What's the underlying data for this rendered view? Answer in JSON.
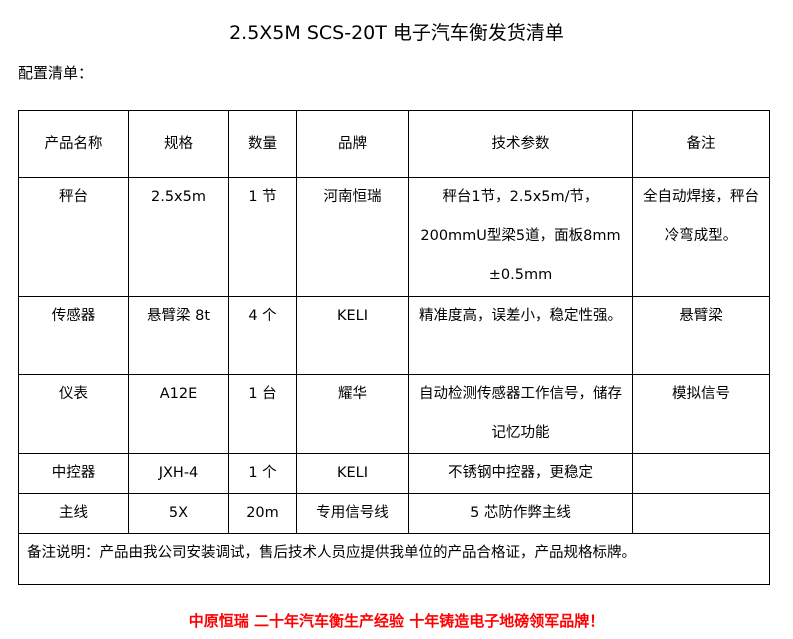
{
  "title": "2.5X5M SCS-20T 电子汽车衡发货清单",
  "subtitle": "配置清单：",
  "table": {
    "headers": [
      "产品名称",
      "规格",
      "数量",
      "品牌",
      "技术参数",
      "备注"
    ],
    "rows": [
      [
        "秤台",
        "2.5x5m",
        "1 节",
        "河南恒瑞",
        "秤台1节，2.5x5m/节，200mmU型梁5道，面板8mm ±0.5mm",
        "全自动焊接，秤台冷弯成型。"
      ],
      [
        "传感器",
        "悬臂梁 8t",
        "4 个",
        "KELI",
        "精准度高，误差小，稳定性强。",
        "悬臂梁"
      ],
      [
        "仪表",
        "A12E",
        "1 台",
        "耀华",
        "自动检测传感器工作信号，储存记忆功能",
        "模拟信号"
      ],
      [
        "中控器",
        "JXH-4",
        "1 个",
        "KELI",
        "不锈钢中控器，更稳定",
        ""
      ],
      [
        "主线",
        "5X",
        "20m",
        "专用信号线",
        "5 芯防作弊主线",
        ""
      ]
    ],
    "note": "备注说明：产品由我公司安装调试，售后技术人员应提供我单位的产品合格证，产品规格标牌。"
  },
  "slogan": "中原恒瑞  二十年汽车衡生产经验  十年铸造电子地磅领军品牌！",
  "colors": {
    "slogan": "#ff0000"
  }
}
